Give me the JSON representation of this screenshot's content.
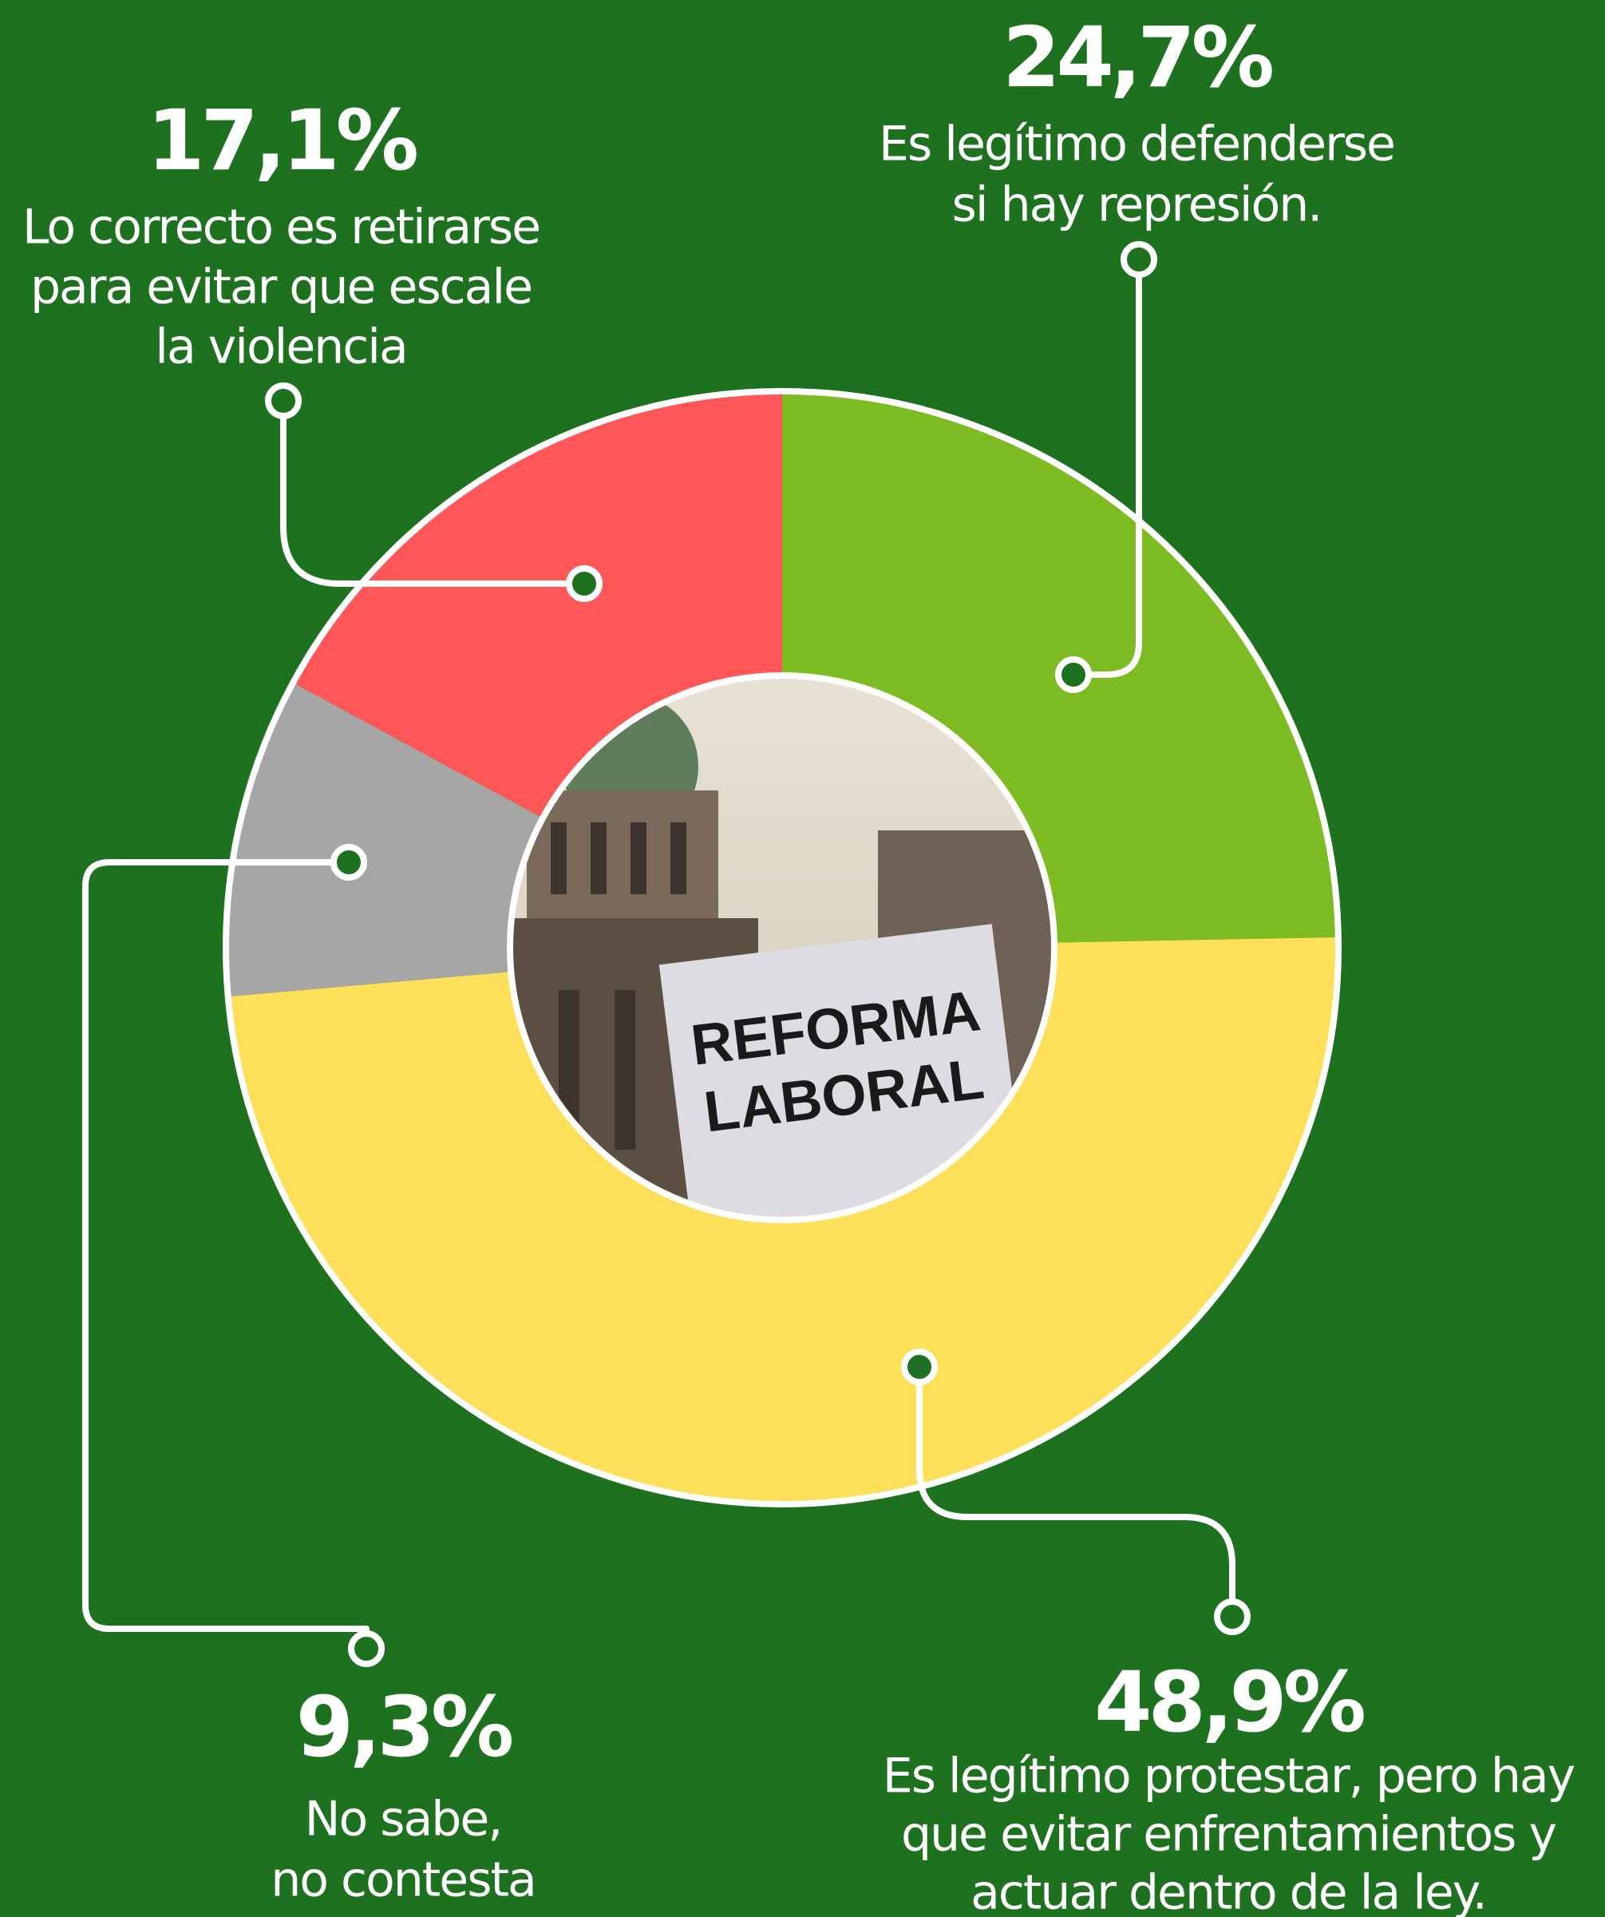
{
  "chart_data": {
    "type": "donut",
    "categories": [
      [
        "Es legítimo defenderse",
        "si hay represión."
      ],
      [
        "Es legítimo protestar, pero hay",
        "que evitar enfrentamientos y",
        "actuar dentro de la ley."
      ],
      [
        "No sabe,",
        "no contesta"
      ],
      [
        "Lo correcto es retirarse",
        "para evitar que escale",
        "la violencia"
      ]
    ],
    "values": [
      24.7,
      48.9,
      9.3,
      17.1
    ],
    "value_labels": [
      "24,7%",
      "48,9%",
      "9,3%",
      "17,1%"
    ],
    "colors": [
      "#7dbb22",
      "#fddf5a",
      "#a6a6a6",
      "#ff5757"
    ],
    "center_image_text": [
      "REFORMA",
      "LABORAL"
    ]
  }
}
